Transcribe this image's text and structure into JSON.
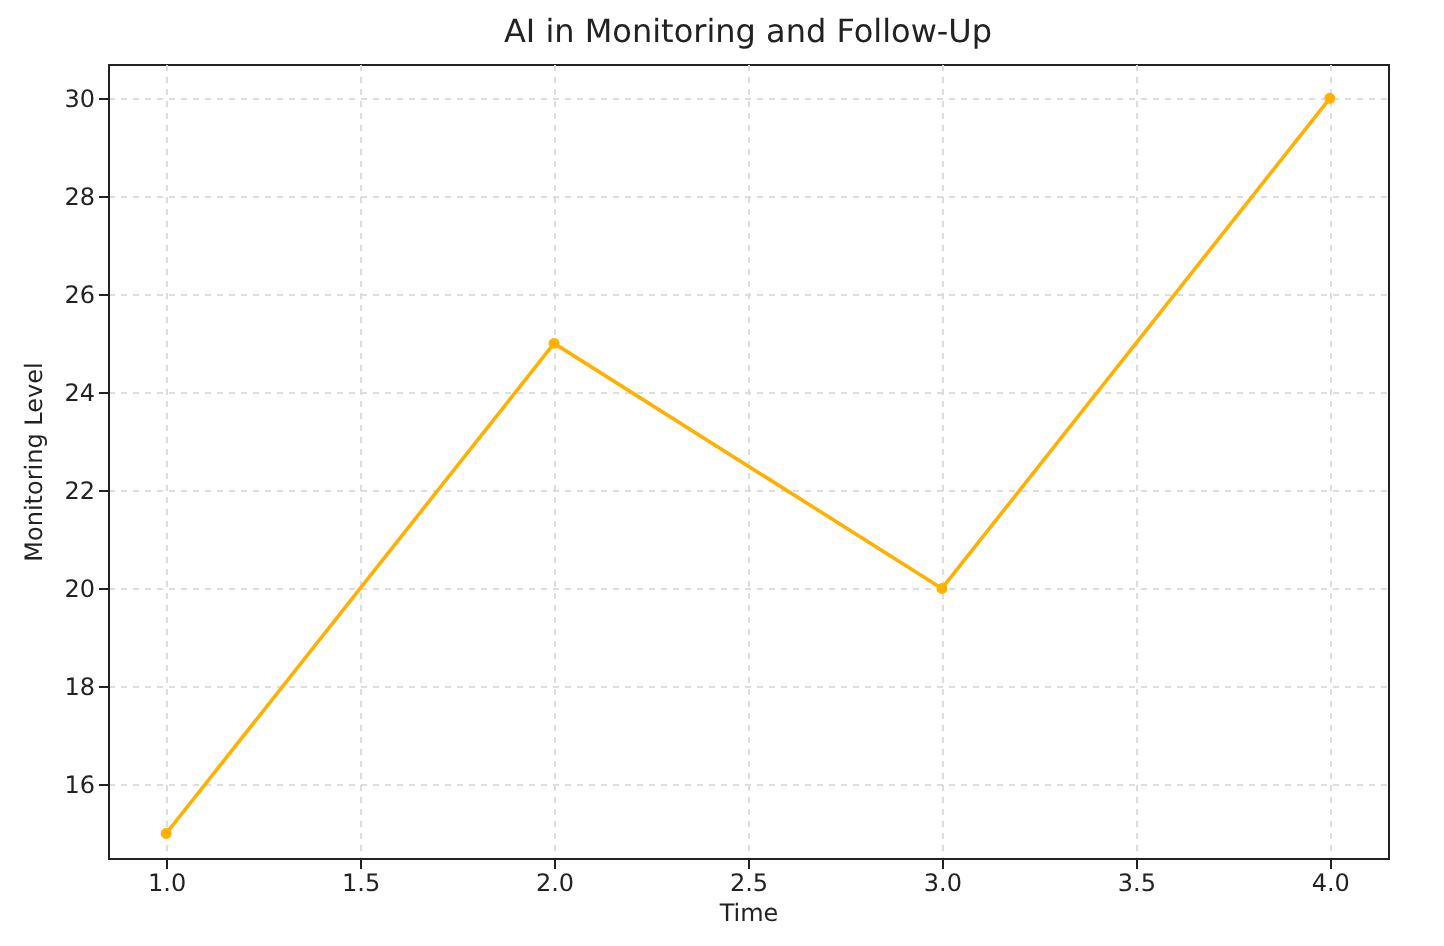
{
  "chart_data": {
    "type": "line",
    "title": "AI in Monitoring and Follow-Up",
    "xlabel": "Time",
    "ylabel": "Monitoring Level",
    "x": [
      1,
      2,
      3,
      4
    ],
    "series": [
      {
        "color": "#ffb000",
        "values": [
          15,
          25,
          20,
          30
        ]
      }
    ],
    "xlim": [
      0.85,
      4.15
    ],
    "ylim": [
      14.5,
      30.7
    ],
    "xticks": [
      {
        "value": 1,
        "label": "1.0"
      },
      {
        "value": 1.5,
        "label": "1.5"
      },
      {
        "value": 2,
        "label": "2.0"
      },
      {
        "value": 2.5,
        "label": "2.5"
      },
      {
        "value": 3,
        "label": "3.0"
      },
      {
        "value": 3.5,
        "label": "3.5"
      },
      {
        "value": 4,
        "label": "4.0"
      }
    ],
    "yticks": [
      16,
      18,
      20,
      22,
      24,
      26,
      28,
      30
    ],
    "grid": true,
    "marker": "circle",
    "line_style": "solid"
  }
}
